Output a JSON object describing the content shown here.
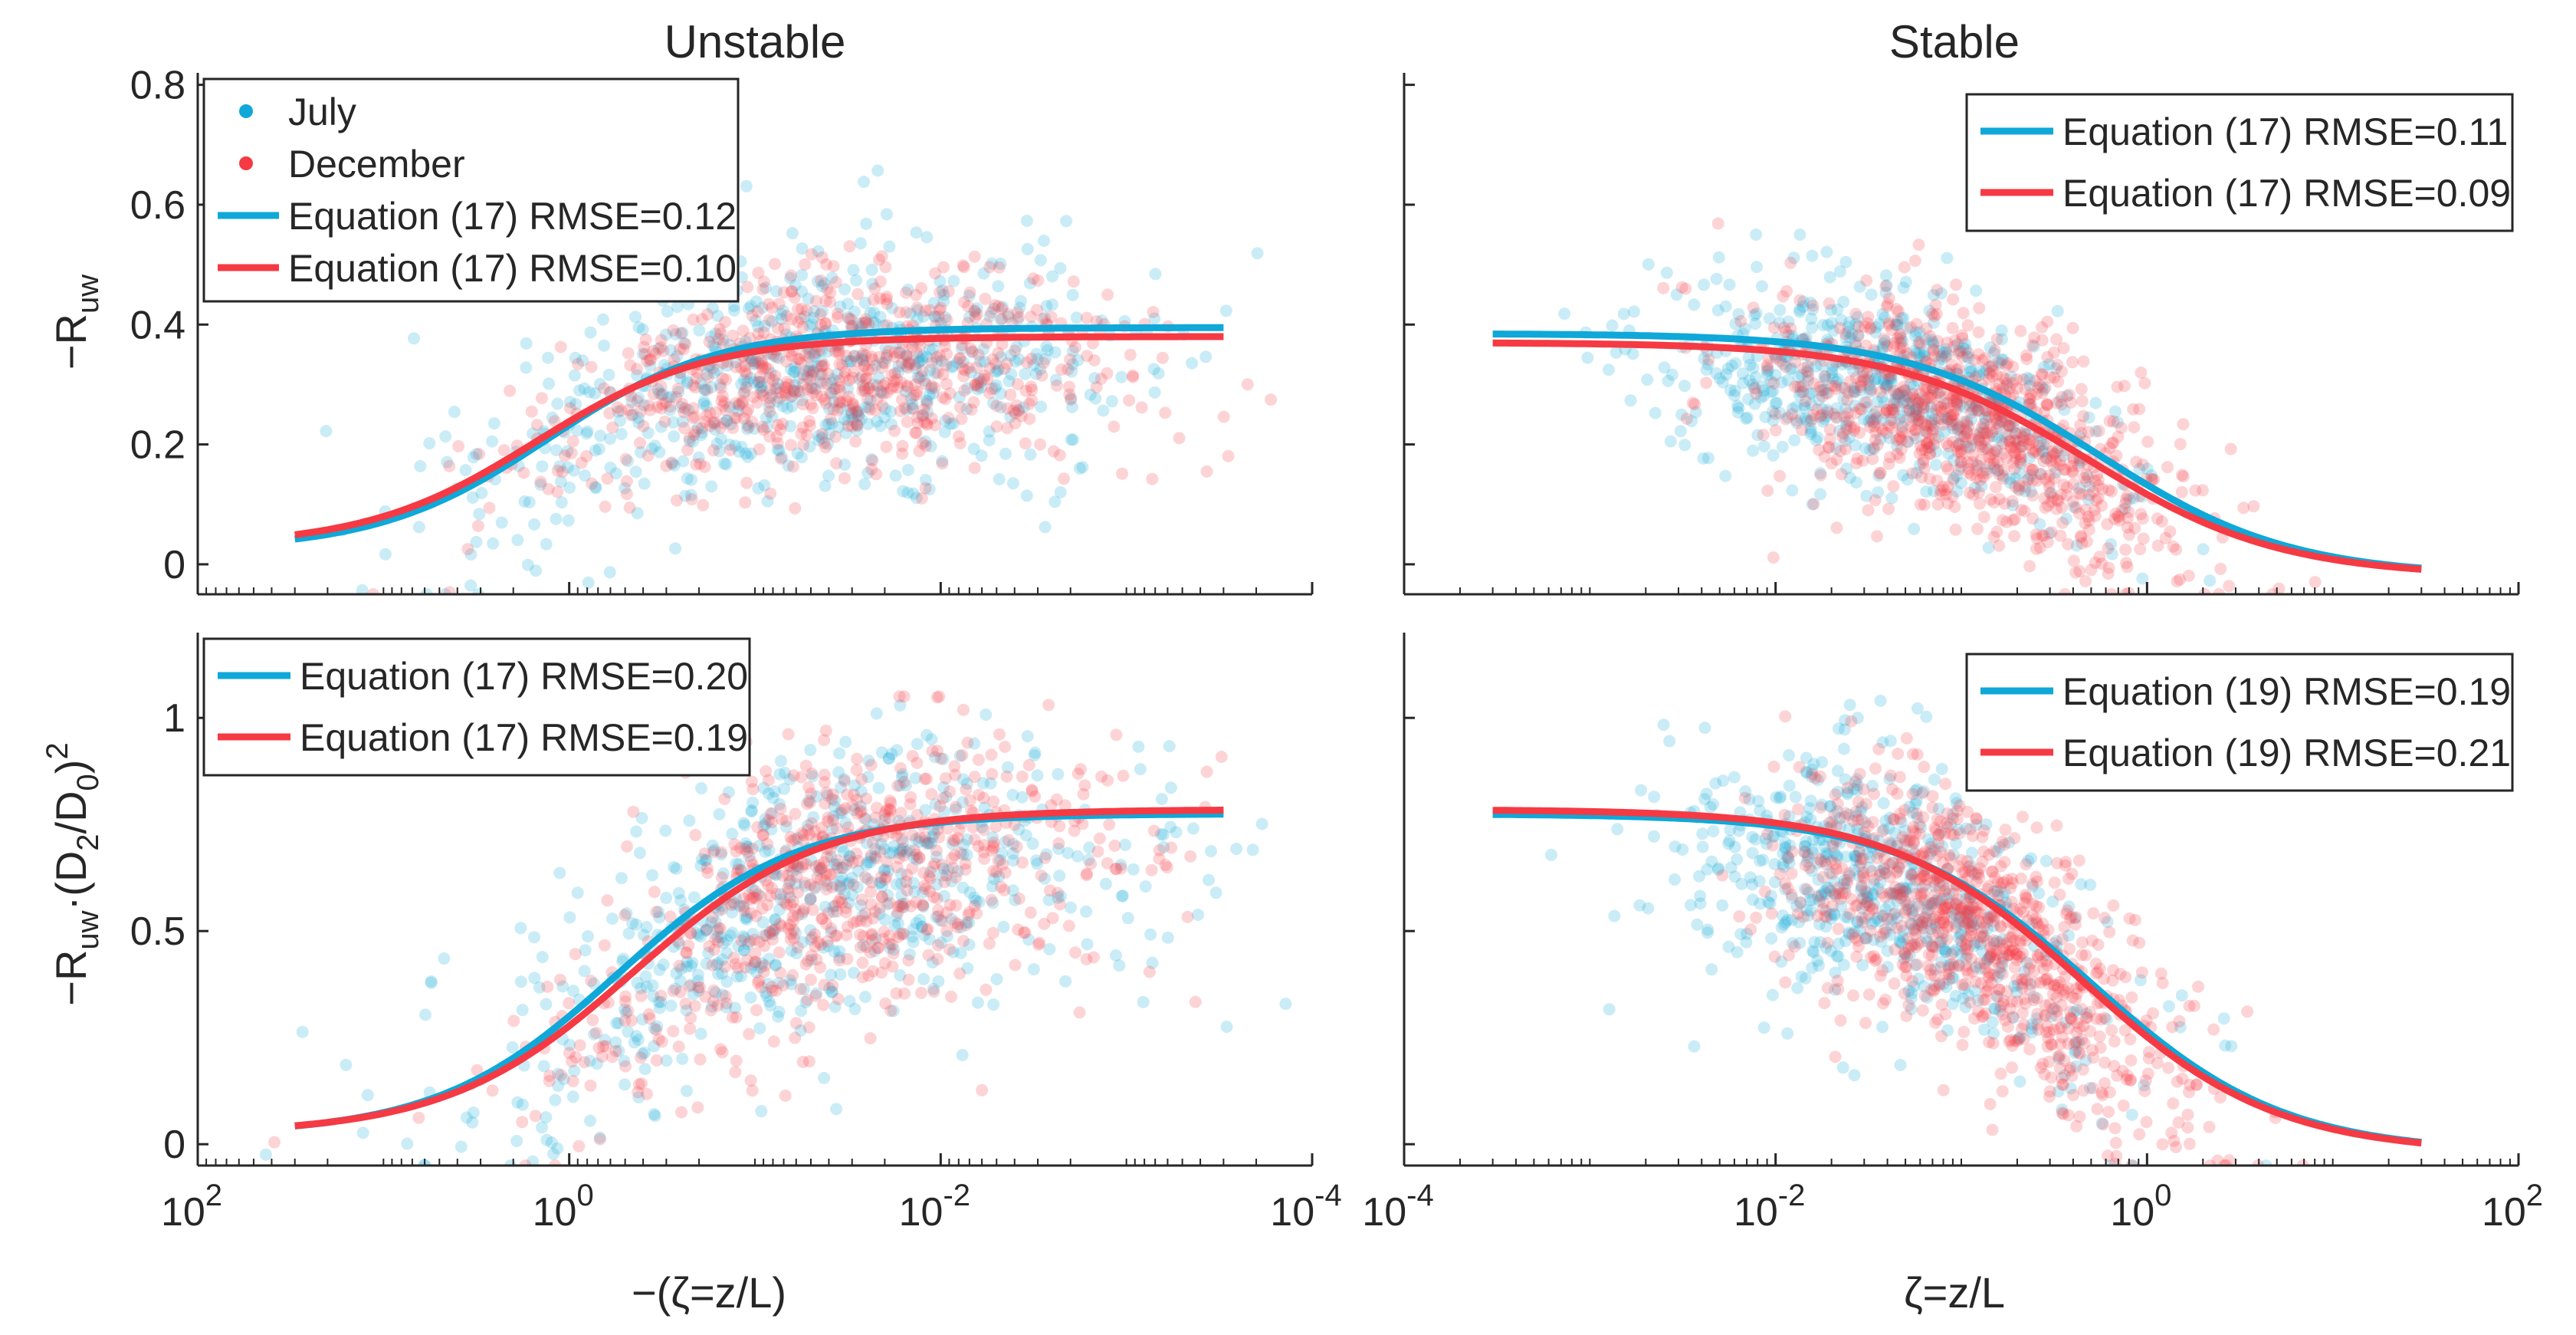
{
  "colors": {
    "july": "#0fa8d8",
    "december": "#f53a44",
    "axis": "#262626"
  },
  "xlabels": {
    "left": "−(ζ=z/L)",
    "right": "ζ=z/L"
  },
  "chart_data": [
    {
      "id": "top-left",
      "type": "scatter",
      "title": "Unstable",
      "xlabel": "",
      "ylabel": "−R",
      "ylabel_sub": "uw",
      "xscale": "log",
      "xreversed": true,
      "xlim": [
        100,
        0.0001
      ],
      "ylim": [
        -0.05,
        0.82
      ],
      "yticks": [
        0,
        0.2,
        0.4,
        0.6,
        0.8
      ],
      "ytick_labels": [
        "0",
        "0.2",
        "0.4",
        "0.6",
        "0.8"
      ],
      "xticks": [],
      "xtick_labels": [],
      "legend": [
        {
          "kind": "marker",
          "series": "july",
          "label": "July"
        },
        {
          "kind": "marker",
          "series": "december",
          "label": "December"
        },
        {
          "kind": "line",
          "series": "july",
          "label": "Equation (17) RMSE=0.12"
        },
        {
          "kind": "line",
          "series": "december",
          "label": "Equation (17) RMSE=0.10"
        }
      ],
      "legend_position": "top-left",
      "series": [
        {
          "name": "July fit",
          "color": "july",
          "x_range": [
            30,
            0.0003
          ],
          "a": 0.395,
          "b": 0.16,
          "center": 1.3,
          "width": 0.55,
          "direction": "unstable"
        },
        {
          "name": "December fit",
          "color": "december",
          "x_range": [
            30,
            0.0003
          ],
          "a": 0.38,
          "b": 0.2,
          "center": 1.5,
          "width": 0.55,
          "direction": "unstable"
        }
      ],
      "scatter": [
        {
          "name": "July",
          "color": "july",
          "n": 650,
          "x_log_mean": -1.3,
          "x_log_sd": 0.9,
          "y_min": -0.05,
          "y_max": 0.78,
          "y_noise": 0.1,
          "seed": 11
        },
        {
          "name": "December",
          "color": "december",
          "n": 700,
          "x_log_mean": -1.5,
          "x_log_sd": 0.75,
          "y_min": -0.05,
          "y_max": 0.55,
          "y_noise": 0.08,
          "seed": 23
        }
      ]
    },
    {
      "id": "top-right",
      "type": "scatter",
      "title": "Stable",
      "xlabel": "",
      "ylabel": "",
      "xscale": "log",
      "xreversed": false,
      "xlim": [
        0.0001,
        100
      ],
      "ylim": [
        -0.05,
        0.82
      ],
      "yticks": [
        0,
        0.2,
        0.4,
        0.6,
        0.8
      ],
      "ytick_labels": [],
      "xticks": [],
      "xtick_labels": [],
      "legend": [
        {
          "kind": "line",
          "series": "july",
          "label": "Equation (17) RMSE=0.11"
        },
        {
          "kind": "line",
          "series": "december",
          "label": "Equation (17) RMSE=0.09"
        }
      ],
      "legend_position": "top-right",
      "series": [
        {
          "name": "July fit",
          "color": "july",
          "x_range": [
            0.0003,
            30
          ],
          "a": 0.385,
          "b": 0.2,
          "center": 0.55,
          "width": 0.62,
          "direction": "stable"
        },
        {
          "name": "December fit",
          "color": "december",
          "x_range": [
            0.0003,
            30
          ],
          "a": 0.37,
          "b": 0.2,
          "center": 0.48,
          "width": 0.62,
          "direction": "stable"
        }
      ],
      "scatter": [
        {
          "name": "July",
          "color": "july",
          "n": 600,
          "x_log_mean": -1.4,
          "x_log_sd": 0.6,
          "y_min": -0.05,
          "y_max": 0.55,
          "y_noise": 0.08,
          "seed": 37
        },
        {
          "name": "December",
          "color": "december",
          "n": 900,
          "x_log_mean": -0.9,
          "x_log_sd": 0.55,
          "y_min": -0.05,
          "y_max": 0.58,
          "y_noise": 0.09,
          "seed": 41
        }
      ]
    },
    {
      "id": "bottom-left",
      "type": "scatter",
      "title": "",
      "xlabel": "−(ζ=z/L)",
      "ylabel": "−R",
      "ylabel_sub": "uw",
      "ylabel_rest": "·(D",
      "ylabel_sub2": "2",
      "ylabel_mid": "/D",
      "ylabel_sub3": "0",
      "ylabel_end": ")",
      "ylabel_sup": "2",
      "xscale": "log",
      "xreversed": true,
      "xlim": [
        100,
        0.0001
      ],
      "ylim": [
        -0.05,
        1.2
      ],
      "yticks": [
        0,
        0.5,
        1
      ],
      "ytick_labels": [
        "0",
        "0.5",
        "1"
      ],
      "xticks": [
        100,
        1,
        0.01,
        0.0001
      ],
      "xtick_labels": [
        {
          "base": "10",
          "exp": "2"
        },
        {
          "base": "10",
          "exp": "0"
        },
        {
          "base": "10",
          "exp": "-2"
        },
        {
          "base": "10",
          "exp": "-4"
        }
      ],
      "legend": [
        {
          "kind": "line",
          "series": "july",
          "label": "Equation (17) RMSE=0.20"
        },
        {
          "kind": "line",
          "series": "december",
          "label": "Equation (17) RMSE=0.19"
        }
      ],
      "legend_position": "top-left",
      "series": [
        {
          "name": "July fit",
          "color": "july",
          "x_range": [
            30,
            0.0003
          ],
          "a": 0.775,
          "b": 0.15,
          "center": 0.55,
          "width": 0.58,
          "direction": "unstable"
        },
        {
          "name": "December fit",
          "color": "december",
          "x_range": [
            30,
            0.0003
          ],
          "a": 0.785,
          "b": 0.16,
          "center": 0.45,
          "width": 0.6,
          "direction": "unstable"
        }
      ],
      "scatter": [
        {
          "name": "July",
          "color": "july",
          "n": 650,
          "x_log_mean": -1.3,
          "x_log_sd": 0.9,
          "y_min": -0.05,
          "y_max": 1.1,
          "y_noise": 0.16,
          "seed": 53
        },
        {
          "name": "December",
          "color": "december",
          "n": 700,
          "x_log_mean": -1.5,
          "x_log_sd": 0.75,
          "y_min": -0.05,
          "y_max": 1.05,
          "y_noise": 0.15,
          "seed": 67
        }
      ]
    },
    {
      "id": "bottom-right",
      "type": "scatter",
      "title": "",
      "xlabel": "ζ=z/L",
      "ylabel": "",
      "xscale": "log",
      "xreversed": false,
      "xlim": [
        0.0001,
        100
      ],
      "ylim": [
        -0.05,
        1.2
      ],
      "yticks": [
        0,
        0.5,
        1
      ],
      "ytick_labels": [],
      "xticks": [
        0.0001,
        0.01,
        1,
        100
      ],
      "xtick_labels": [
        {
          "base": "10",
          "exp": "-4"
        },
        {
          "base": "10",
          "exp": "-2"
        },
        {
          "base": "10",
          "exp": "0"
        },
        {
          "base": "10",
          "exp": "2"
        }
      ],
      "legend": [
        {
          "kind": "line",
          "series": "july",
          "label": "Equation (19) RMSE=0.19"
        },
        {
          "kind": "line",
          "series": "december",
          "label": "Equation (19) RMSE=0.21"
        }
      ],
      "legend_position": "top-right",
      "series": [
        {
          "name": "July fit",
          "color": "july",
          "x_range": [
            0.0003,
            30
          ],
          "a": 0.775,
          "b": 0.25,
          "center": 0.5,
          "width": 0.62,
          "direction": "stable"
        },
        {
          "name": "December fit",
          "color": "december",
          "x_range": [
            0.0003,
            30
          ],
          "a": 0.785,
          "b": 0.25,
          "center": 0.45,
          "width": 0.62,
          "direction": "stable"
        }
      ],
      "scatter": [
        {
          "name": "July",
          "color": "july",
          "n": 600,
          "x_log_mean": -1.4,
          "x_log_sd": 0.6,
          "y_min": -0.05,
          "y_max": 1.05,
          "y_noise": 0.15,
          "seed": 71
        },
        {
          "name": "December",
          "color": "december",
          "n": 900,
          "x_log_mean": -0.9,
          "x_log_sd": 0.55,
          "y_min": -0.05,
          "y_max": 1.05,
          "y_noise": 0.15,
          "seed": 83
        }
      ]
    }
  ]
}
